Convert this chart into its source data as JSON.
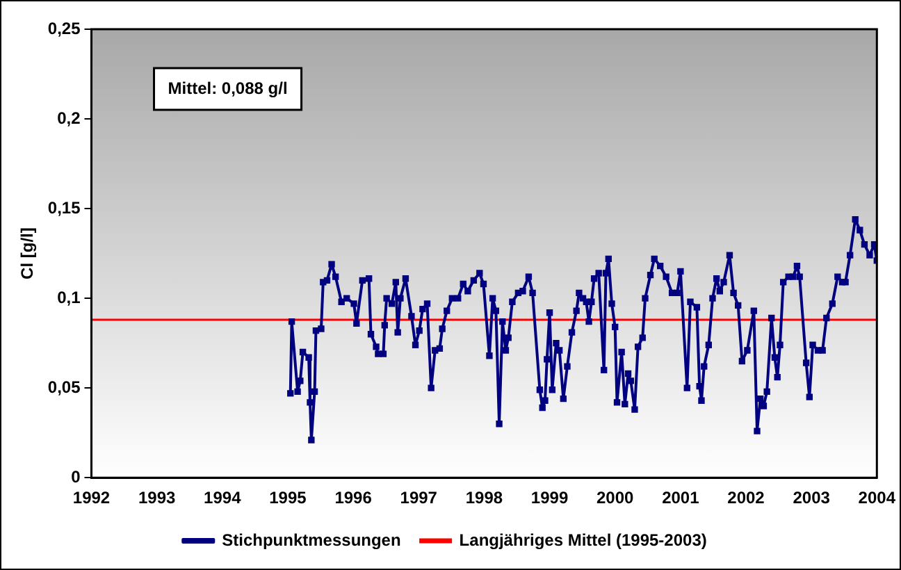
{
  "chart_data": {
    "type": "line",
    "ylabel": "Cl [g/l]",
    "xlim": [
      1992,
      2004
    ],
    "xticks": [
      1992,
      1993,
      1994,
      1995,
      1996,
      1997,
      1998,
      1999,
      2000,
      2001,
      2002,
      2003,
      2004
    ],
    "ylim": [
      0,
      0.25
    ],
    "yticks": [
      {
        "value": 0,
        "label": "0"
      },
      {
        "value": 0.05,
        "label": "0,05"
      },
      {
        "value": 0.1,
        "label": "0,1"
      },
      {
        "value": 0.15,
        "label": "0,15"
      },
      {
        "value": 0.2,
        "label": "0,2"
      },
      {
        "value": 0.25,
        "label": "0,25"
      }
    ],
    "grid": false,
    "legend": "bottom",
    "marker": "square",
    "line_style": "solid",
    "annotations": [
      "Mittel: 0,088 g/l"
    ],
    "ref_lines": [
      {
        "axis": "y",
        "value": 0.088,
        "label": "Langjähriges Mittel (1995-2003)",
        "color": "#ff0000"
      }
    ],
    "series": [
      {
        "name": "Stichpunktmessungen",
        "color": "#000080",
        "x": [
          1995.04,
          1995.06,
          1995.15,
          1995.19,
          1995.23,
          1995.32,
          1995.34,
          1995.36,
          1995.41,
          1995.43,
          1995.51,
          1995.54,
          1995.6,
          1995.67,
          1995.73,
          1995.82,
          1995.9,
          1996.01,
          1996.05,
          1996.14,
          1996.24,
          1996.27,
          1996.35,
          1996.38,
          1996.46,
          1996.48,
          1996.51,
          1996.59,
          1996.65,
          1996.68,
          1996.72,
          1996.8,
          1996.89,
          1996.95,
          1997.01,
          1997.06,
          1997.13,
          1997.19,
          1997.25,
          1997.32,
          1997.36,
          1997.43,
          1997.51,
          1997.6,
          1997.68,
          1997.75,
          1997.84,
          1997.93,
          1997.99,
          1998.08,
          1998.13,
          1998.18,
          1998.23,
          1998.28,
          1998.33,
          1998.37,
          1998.43,
          1998.52,
          1998.59,
          1998.68,
          1998.74,
          1998.85,
          1998.89,
          1998.93,
          1998.96,
          1999.0,
          1999.04,
          1999.1,
          1999.15,
          1999.21,
          1999.27,
          1999.34,
          1999.41,
          1999.45,
          1999.51,
          1999.56,
          1999.6,
          1999.64,
          1999.68,
          1999.75,
          1999.83,
          1999.86,
          1999.9,
          1999.95,
          2000.0,
          2000.03,
          2000.1,
          2000.15,
          2000.2,
          2000.24,
          2000.3,
          2000.35,
          2000.42,
          2000.46,
          2000.54,
          2000.6,
          2000.69,
          2000.78,
          2000.87,
          2000.95,
          2001.0,
          2001.1,
          2001.15,
          2001.25,
          2001.29,
          2001.32,
          2001.36,
          2001.43,
          2001.49,
          2001.55,
          2001.6,
          2001.66,
          2001.75,
          2001.81,
          2001.88,
          2001.94,
          2002.02,
          2002.12,
          2002.17,
          2002.22,
          2002.27,
          2002.32,
          2002.39,
          2002.44,
          2002.48,
          2002.52,
          2002.57,
          2002.65,
          2002.72,
          2002.78,
          2002.82,
          2002.92,
          2002.97,
          2003.02,
          2003.1,
          2003.17,
          2003.23,
          2003.32,
          2003.4,
          2003.47,
          2003.52,
          2003.59,
          2003.67,
          2003.74,
          2003.81,
          2003.89,
          2003.96,
          2004.0
        ],
        "values": [
          0.047,
          0.087,
          0.048,
          0.054,
          0.07,
          0.067,
          0.042,
          0.021,
          0.048,
          0.082,
          0.083,
          0.109,
          0.11,
          0.119,
          0.112,
          0.098,
          0.1,
          0.097,
          0.086,
          0.11,
          0.111,
          0.08,
          0.073,
          0.069,
          0.069,
          0.085,
          0.1,
          0.097,
          0.109,
          0.081,
          0.1,
          0.111,
          0.09,
          0.074,
          0.082,
          0.094,
          0.097,
          0.05,
          0.071,
          0.072,
          0.083,
          0.093,
          0.1,
          0.1,
          0.108,
          0.104,
          0.11,
          0.114,
          0.108,
          0.068,
          0.1,
          0.093,
          0.03,
          0.087,
          0.071,
          0.078,
          0.098,
          0.103,
          0.104,
          0.112,
          0.103,
          0.049,
          0.039,
          0.043,
          0.066,
          0.092,
          0.049,
          0.075,
          0.071,
          0.044,
          0.062,
          0.081,
          0.093,
          0.103,
          0.1,
          0.098,
          0.087,
          0.098,
          0.111,
          0.114,
          0.06,
          0.114,
          0.122,
          0.097,
          0.084,
          0.042,
          0.07,
          0.041,
          0.058,
          0.054,
          0.038,
          0.073,
          0.078,
          0.1,
          0.113,
          0.122,
          0.118,
          0.112,
          0.103,
          0.103,
          0.115,
          0.05,
          0.098,
          0.095,
          0.051,
          0.043,
          0.062,
          0.074,
          0.1,
          0.111,
          0.104,
          0.109,
          0.124,
          0.103,
          0.096,
          0.065,
          0.071,
          0.093,
          0.026,
          0.044,
          0.04,
          0.048,
          0.089,
          0.067,
          0.056,
          0.074,
          0.109,
          0.112,
          0.112,
          0.118,
          0.112,
          0.064,
          0.045,
          0.074,
          0.071,
          0.071,
          0.089,
          0.097,
          0.112,
          0.109,
          0.109,
          0.124,
          0.144,
          0.138,
          0.13,
          0.124,
          0.13,
          0.121
        ]
      }
    ]
  }
}
